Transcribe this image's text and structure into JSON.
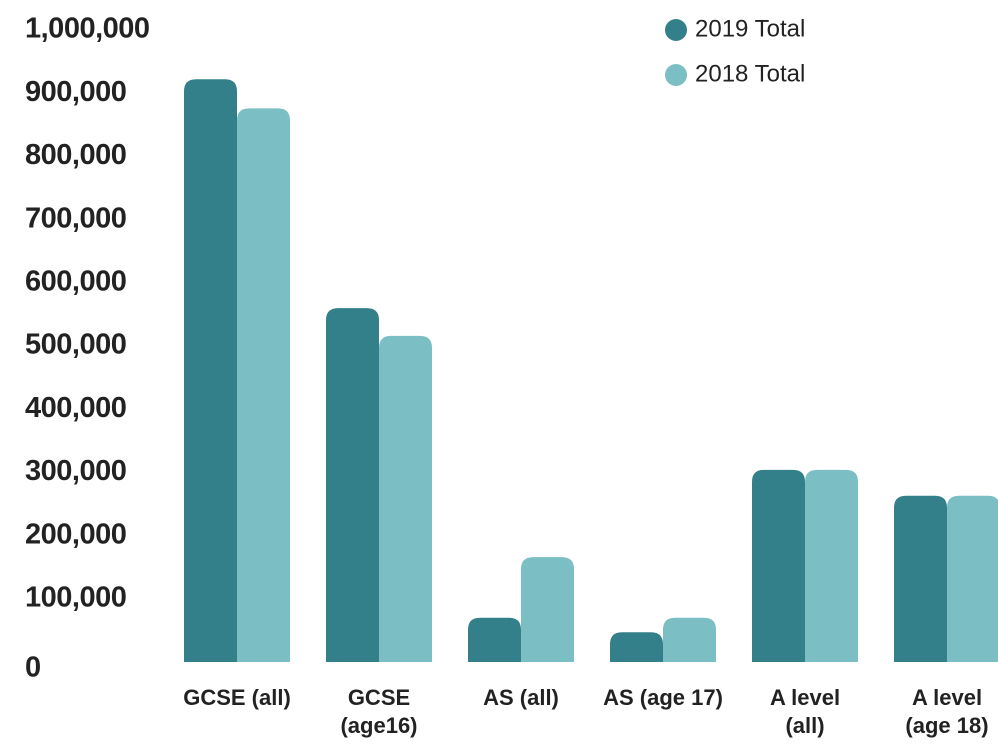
{
  "chart_data": {
    "type": "bar",
    "categories": [
      "GCSE (all)",
      "GCSE\n(age16)",
      "AS (all)",
      "AS (age 17)",
      "A level\n(all)",
      "A level\n(age 18)"
    ],
    "series": [
      {
        "name": "2019 Total",
        "color": "#34808a",
        "values": [
          922000,
          560000,
          70000,
          47000,
          304000,
          263000
        ]
      },
      {
        "name": "2018 Total",
        "color": "#7bbec4",
        "values": [
          876000,
          516000,
          166000,
          70000,
          304000,
          263000
        ]
      }
    ],
    "ylim": [
      0,
      1000000
    ],
    "yticks": [
      0,
      {
        "value": 100000,
        "label": "100,000"
      },
      {
        "value": 200000,
        "label": "200,000"
      },
      {
        "value": 300000,
        "label": "300,000"
      },
      {
        "value": 400000,
        "label": "400,000"
      },
      {
        "value": 500000,
        "label": "500,000"
      },
      {
        "value": 600000,
        "label": "600,000"
      },
      {
        "value": 700000,
        "label": "700,000"
      },
      {
        "value": 800000,
        "label": "800,000"
      },
      {
        "value": 900000,
        "label": "900,000"
      },
      {
        "value": 1000000,
        "label": "1,000,000"
      }
    ],
    "grid": false,
    "legend": "top-right"
  }
}
